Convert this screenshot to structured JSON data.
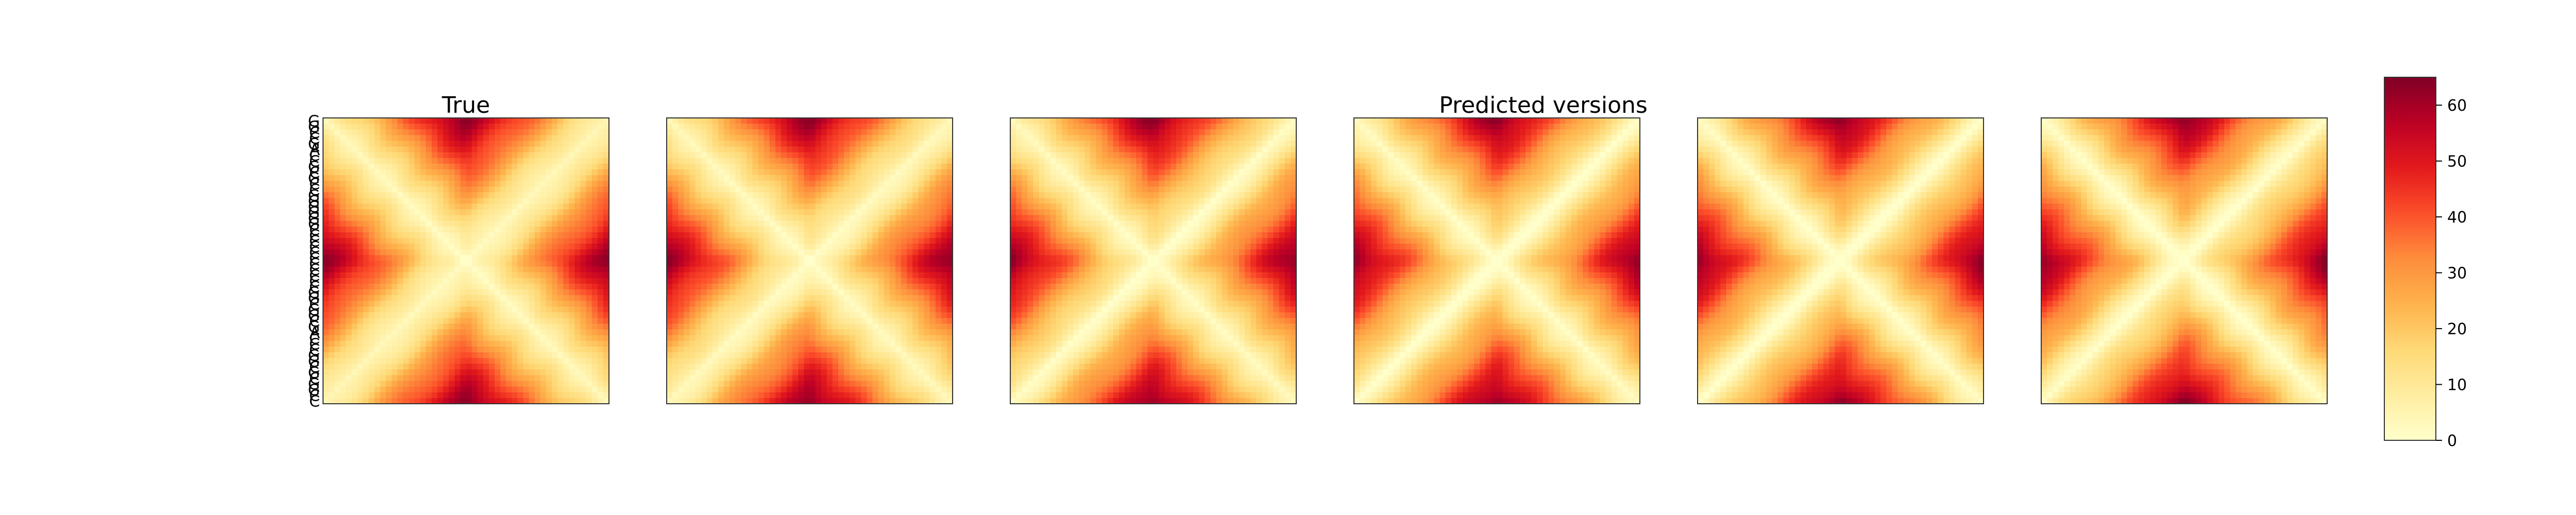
{
  "chart_data": {
    "type": "heatmap",
    "colormap": "YlOrRd",
    "panel_titles": [
      "True",
      "",
      "",
      "Predicted versions",
      "",
      ""
    ],
    "panel_count": 6,
    "matrix_size": 50,
    "row_labels": [
      "G",
      "G",
      "C",
      "C",
      "G",
      "A",
      "C",
      "C",
      "G",
      "C",
      "G",
      "C",
      "C",
      "G",
      "G",
      "G",
      "G",
      "G",
      "G",
      "C",
      "C",
      "C",
      "C",
      "C",
      "C",
      "C",
      "C",
      "C",
      "C",
      "C",
      "G",
      "G",
      "C",
      "G",
      "G",
      "C",
      "G",
      "A",
      "C",
      "C",
      "C",
      "G",
      "G",
      "C",
      "G",
      "C",
      "G",
      "G",
      "C",
      "C"
    ],
    "colorbar": {
      "ticks": [
        0,
        10,
        20,
        30,
        40,
        50,
        60
      ],
      "min": 0,
      "max": 65
    },
    "pattern_description_values": {
      "min_value": 0,
      "max_value": 63
    }
  }
}
